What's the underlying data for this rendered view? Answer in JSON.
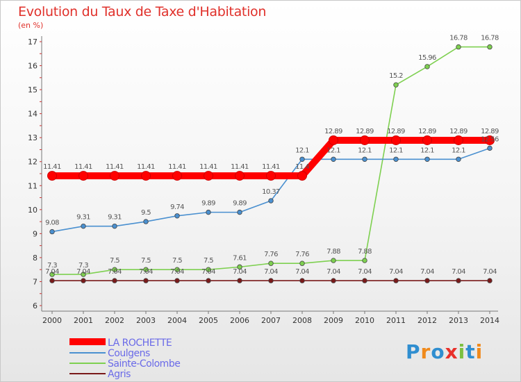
{
  "title": "Evolution du Taux de Taxe d'Habitation",
  "subtitle": "(en %)",
  "logo_text": "Proxiti",
  "chart_data": {
    "type": "line",
    "x": [
      2000,
      2001,
      2002,
      2003,
      2004,
      2005,
      2006,
      2007,
      2008,
      2009,
      2010,
      2011,
      2012,
      2013,
      2014
    ],
    "ylim": [
      6,
      17
    ],
    "yticks": [
      6,
      7,
      8,
      9,
      10,
      11,
      12,
      13,
      14,
      15,
      16,
      17
    ],
    "grid": false,
    "legend_position": "bottom-left",
    "series": [
      {
        "name": "LA ROCHETTE",
        "color": "#ff0000",
        "values": [
          11.41,
          11.41,
          11.41,
          11.41,
          11.41,
          11.41,
          11.41,
          11.41,
          11.41,
          12.89,
          12.89,
          12.89,
          12.89,
          12.89,
          12.89
        ],
        "labels": [
          "11.41",
          "11.41",
          "11.41",
          "11.41",
          "11.41",
          "11.41",
          "11.41",
          "11.41",
          "11.4",
          "12.89",
          "12.89",
          "12.89",
          "12.89",
          "12.89",
          "12.89"
        ]
      },
      {
        "name": "Coulgens",
        "color": "#4a90d0",
        "values": [
          9.08,
          9.31,
          9.31,
          9.5,
          9.74,
          9.89,
          9.89,
          10.37,
          12.1,
          12.1,
          12.1,
          12.1,
          12.1,
          12.1,
          12.56
        ],
        "labels": [
          "9.08",
          "9.31",
          "9.31",
          "9.5",
          "9.74",
          "9.89",
          "9.89",
          "10.37",
          "12.1",
          "12.1",
          "12.1",
          "12.1",
          "12.1",
          "12.1",
          "12.56"
        ]
      },
      {
        "name": "Sainte-Colombe",
        "color": "#7ed050",
        "values": [
          7.3,
          7.3,
          7.5,
          7.5,
          7.5,
          7.5,
          7.61,
          7.76,
          7.76,
          7.88,
          7.88,
          15.2,
          15.96,
          16.78,
          16.78
        ],
        "labels": [
          "7.3",
          "7.3",
          "7.5",
          "7.5",
          "7.5",
          "7.5",
          "7.61",
          "7.76",
          "7.76",
          "7.88",
          "7.88",
          "15.2",
          "15.96",
          "16.78",
          "16.78"
        ]
      },
      {
        "name": "Agris",
        "color": "#7a1a1a",
        "values": [
          7.04,
          7.04,
          7.04,
          7.04,
          7.04,
          7.04,
          7.04,
          7.04,
          7.04,
          7.04,
          7.04,
          7.04,
          7.04,
          7.04,
          7.04
        ],
        "labels": [
          "7.04",
          "7.04",
          "7.04",
          "7.04",
          "7.04",
          "7.04",
          "7.04",
          "7.04",
          "7.04",
          "7.04",
          "7.04",
          "7.04",
          "7.04",
          "7.04",
          "7.04"
        ]
      }
    ]
  }
}
